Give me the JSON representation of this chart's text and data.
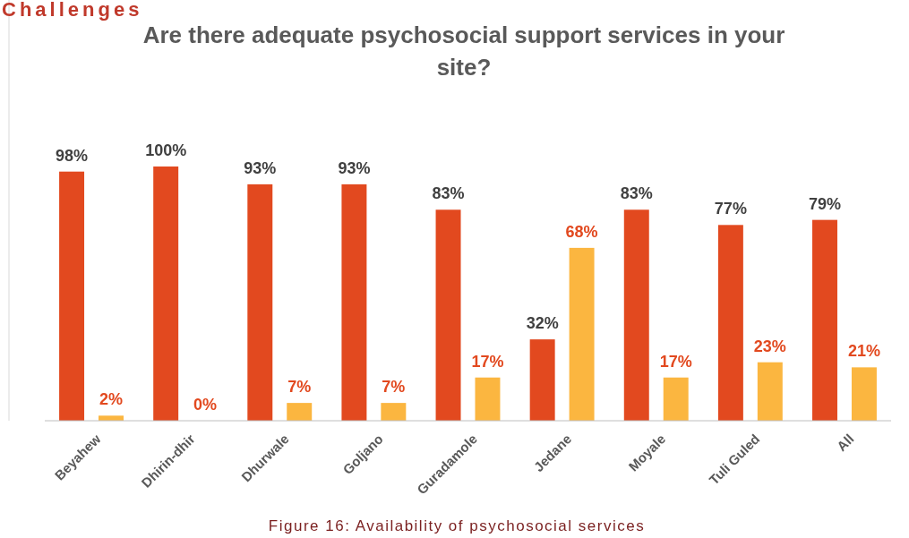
{
  "chart_data": {
    "type": "bar",
    "title": "Are there adequate psychosocial support services in your site?",
    "categories": [
      "Beyahew",
      "Dhirin-dhir",
      "Dhurwale",
      "Goljano",
      "Guradamole",
      "Jedane",
      "Moyale",
      "Tuli Guled",
      "All"
    ],
    "series": [
      {
        "color": "#e2491f",
        "values": [
          98,
          100,
          93,
          93,
          83,
          32,
          83,
          77,
          79
        ],
        "value_labels": [
          "98%",
          "100%",
          "93%",
          "93%",
          "83%",
          "32%",
          "83%",
          "77%",
          "79%"
        ]
      },
      {
        "color": "#fbb640",
        "values": [
          2,
          0,
          7,
          7,
          17,
          68,
          17,
          23,
          21
        ],
        "value_labels": [
          "2%",
          "0%",
          "7%",
          "7%",
          "17%",
          "68%",
          "17%",
          "23%",
          "21%"
        ]
      }
    ],
    "ylim": [
      0,
      100
    ],
    "tick_labels": "x",
    "annotations": [
      "Challenges",
      "Figure 16: Availability of psychosocial services"
    ]
  }
}
